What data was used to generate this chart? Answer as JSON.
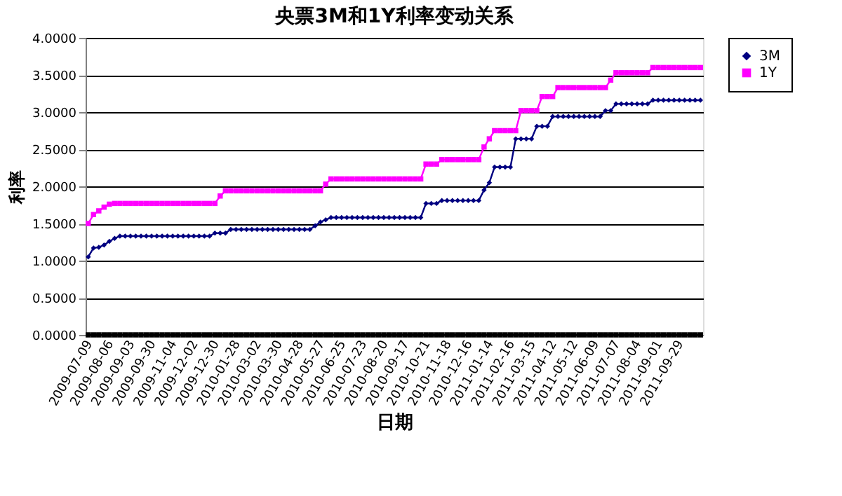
{
  "chart_data": {
    "type": "line",
    "title": "央票3M和1Y利率变动关系",
    "xlabel": "日期",
    "ylabel": "利率",
    "categories": [
      "2009-07-09",
      null,
      null,
      null,
      "2009-08-06",
      null,
      null,
      null,
      "2009-09-03",
      null,
      null,
      null,
      "2009-09-30",
      null,
      null,
      null,
      "2009-11-04",
      null,
      null,
      null,
      "2009-12-02",
      null,
      null,
      null,
      "2009-12-30",
      null,
      null,
      null,
      "2010-01-28",
      null,
      null,
      null,
      "2010-03-02",
      null,
      null,
      null,
      "2010-03-30",
      null,
      null,
      null,
      "2010-04-28",
      null,
      null,
      null,
      "2010-05-27",
      null,
      null,
      null,
      "2010-06-25",
      null,
      null,
      null,
      "2010-07-23",
      null,
      null,
      null,
      "2010-08-20",
      null,
      null,
      null,
      "2010-09-17",
      null,
      null,
      null,
      "2010-10-21",
      null,
      null,
      null,
      "2010-11-18",
      null,
      null,
      null,
      "2010-12-16",
      null,
      null,
      null,
      "2011-01-14",
      null,
      null,
      null,
      "2011-02-16",
      null,
      null,
      null,
      "2011-03-15",
      null,
      null,
      null,
      "2011-04-12",
      null,
      null,
      null,
      "2011-05-12",
      null,
      null,
      null,
      "2011-06-09",
      null,
      null,
      null,
      "2011-07-07",
      null,
      null,
      null,
      "2011-08-04",
      null,
      null,
      null,
      "2011-09-01",
      null,
      null,
      null,
      "2011-09-29",
      null,
      null,
      null,
      null
    ],
    "series": [
      {
        "name": "3M",
        "color": "#000080",
        "marker": "diamond",
        "values": [
          1.05,
          1.17,
          1.18,
          1.21,
          1.26,
          1.3,
          1.33,
          1.33,
          1.33,
          1.33,
          1.33,
          1.33,
          1.33,
          1.33,
          1.33,
          1.33,
          1.33,
          1.33,
          1.33,
          1.33,
          1.33,
          1.33,
          1.33,
          1.33,
          1.37,
          1.37,
          1.37,
          1.42,
          1.42,
          1.42,
          1.42,
          1.42,
          1.42,
          1.42,
          1.42,
          1.42,
          1.42,
          1.42,
          1.42,
          1.42,
          1.42,
          1.42,
          1.42,
          1.47,
          1.52,
          1.55,
          1.58,
          1.58,
          1.58,
          1.58,
          1.58,
          1.58,
          1.58,
          1.58,
          1.58,
          1.58,
          1.58,
          1.58,
          1.58,
          1.58,
          1.58,
          1.58,
          1.58,
          1.58,
          1.77,
          1.77,
          1.77,
          1.81,
          1.81,
          1.81,
          1.81,
          1.81,
          1.81,
          1.81,
          1.81,
          1.95,
          2.05,
          2.26,
          2.26,
          2.26,
          2.26,
          2.64,
          2.64,
          2.64,
          2.64,
          2.81,
          2.81,
          2.81,
          2.94,
          2.94,
          2.94,
          2.94,
          2.94,
          2.94,
          2.94,
          2.94,
          2.94,
          2.94,
          3.02,
          3.02,
          3.11,
          3.11,
          3.11,
          3.11,
          3.11,
          3.11,
          3.11,
          3.16,
          3.16,
          3.16,
          3.16,
          3.16,
          3.16,
          3.16,
          3.16,
          3.16,
          3.16
        ]
      },
      {
        "name": "1Y",
        "color": "#ff00ff",
        "marker": "square",
        "values": [
          1.5,
          1.62,
          1.67,
          1.72,
          1.76,
          1.77,
          1.77,
          1.77,
          1.77,
          1.77,
          1.77,
          1.77,
          1.77,
          1.77,
          1.77,
          1.77,
          1.77,
          1.77,
          1.77,
          1.77,
          1.77,
          1.77,
          1.77,
          1.77,
          1.77,
          1.87,
          1.94,
          1.94,
          1.94,
          1.94,
          1.94,
          1.94,
          1.94,
          1.94,
          1.94,
          1.94,
          1.94,
          1.94,
          1.94,
          1.94,
          1.94,
          1.94,
          1.94,
          1.94,
          1.94,
          2.03,
          2.1,
          2.1,
          2.1,
          2.1,
          2.1,
          2.1,
          2.1,
          2.1,
          2.1,
          2.1,
          2.1,
          2.1,
          2.1,
          2.1,
          2.1,
          2.1,
          2.1,
          2.1,
          2.3,
          2.3,
          2.3,
          2.36,
          2.36,
          2.36,
          2.36,
          2.36,
          2.36,
          2.36,
          2.36,
          2.53,
          2.64,
          2.75,
          2.75,
          2.75,
          2.75,
          2.75,
          3.02,
          3.02,
          3.02,
          3.02,
          3.21,
          3.21,
          3.21,
          3.33,
          3.33,
          3.33,
          3.33,
          3.33,
          3.33,
          3.33,
          3.33,
          3.33,
          3.33,
          3.43,
          3.53,
          3.53,
          3.53,
          3.53,
          3.53,
          3.53,
          3.53,
          3.6,
          3.6,
          3.6,
          3.6,
          3.6,
          3.6,
          3.6,
          3.6,
          3.6,
          3.6
        ]
      },
      {
        "color": "#000000",
        "marker": "square",
        "values": [
          0,
          0,
          0,
          0,
          0,
          0,
          0,
          0,
          0,
          0,
          0,
          0,
          0,
          0,
          0,
          0,
          0,
          0,
          0,
          0,
          0,
          0,
          0,
          0,
          0,
          0,
          0,
          0,
          0,
          0,
          0,
          0,
          0,
          0,
          0,
          0,
          0,
          0,
          0,
          0,
          0,
          0,
          0,
          0,
          0,
          0,
          0,
          0,
          0,
          0,
          0,
          0,
          0,
          0,
          0,
          0,
          0,
          0,
          0,
          0,
          0,
          0,
          0,
          0,
          0,
          0,
          0,
          0,
          0,
          0,
          0,
          0,
          0,
          0,
          0,
          0,
          0,
          0,
          0,
          0,
          0,
          0,
          0,
          0,
          0,
          0,
          0,
          0,
          0,
          0,
          0,
          0,
          0,
          0,
          0,
          0,
          0,
          0,
          0,
          0,
          0,
          0,
          0,
          0,
          0,
          0,
          0,
          0,
          0,
          0,
          0,
          0,
          0,
          0,
          0,
          0,
          0
        ]
      }
    ],
    "ylim": [
      0,
      4
    ],
    "yticks": [
      {
        "value": 0,
        "label": "0.0000"
      },
      {
        "value": 0.5,
        "label": "0.5000"
      },
      {
        "value": 1,
        "label": "1.0000"
      },
      {
        "value": 1.5,
        "label": "1.5000"
      },
      {
        "value": 2,
        "label": "2.0000"
      },
      {
        "value": 2.5,
        "label": "2.5000"
      },
      {
        "value": 3,
        "label": "3.0000"
      },
      {
        "value": 3.5,
        "label": "3.5000"
      },
      {
        "value": 4,
        "label": "4.0000"
      }
    ],
    "grid": "y",
    "legend": "right",
    "line_style": "solid"
  }
}
